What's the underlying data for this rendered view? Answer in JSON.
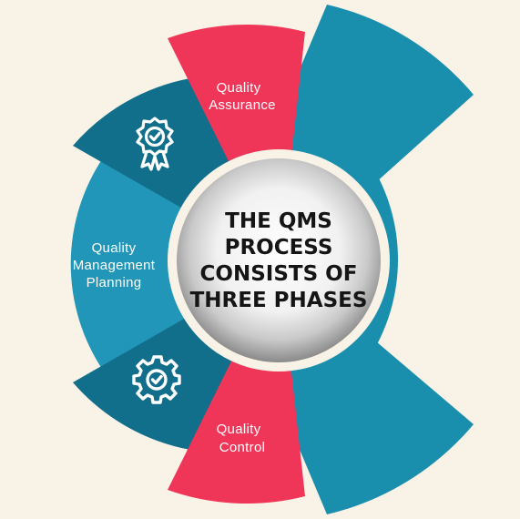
{
  "title_lines": [
    "THE QMS",
    "PROCESS",
    "CONSISTS OF",
    "THREE PHASES"
  ],
  "phases": {
    "assurance": [
      "Quality",
      "Assurance"
    ],
    "planning": [
      "Quality",
      "Management",
      "Planning"
    ],
    "control": [
      "Quality",
      "Control"
    ]
  },
  "icons": {
    "assurance": "award-badge-check-icon",
    "control": "gear-check-icon"
  },
  "colors": {
    "background": "#f8f3e6",
    "teal": "#1a8fad",
    "teal_light": "#2196b8",
    "teal_dark": "#126f8c",
    "pink": "#ef3658",
    "ring": "#f8f3e6",
    "text": "#151515"
  }
}
